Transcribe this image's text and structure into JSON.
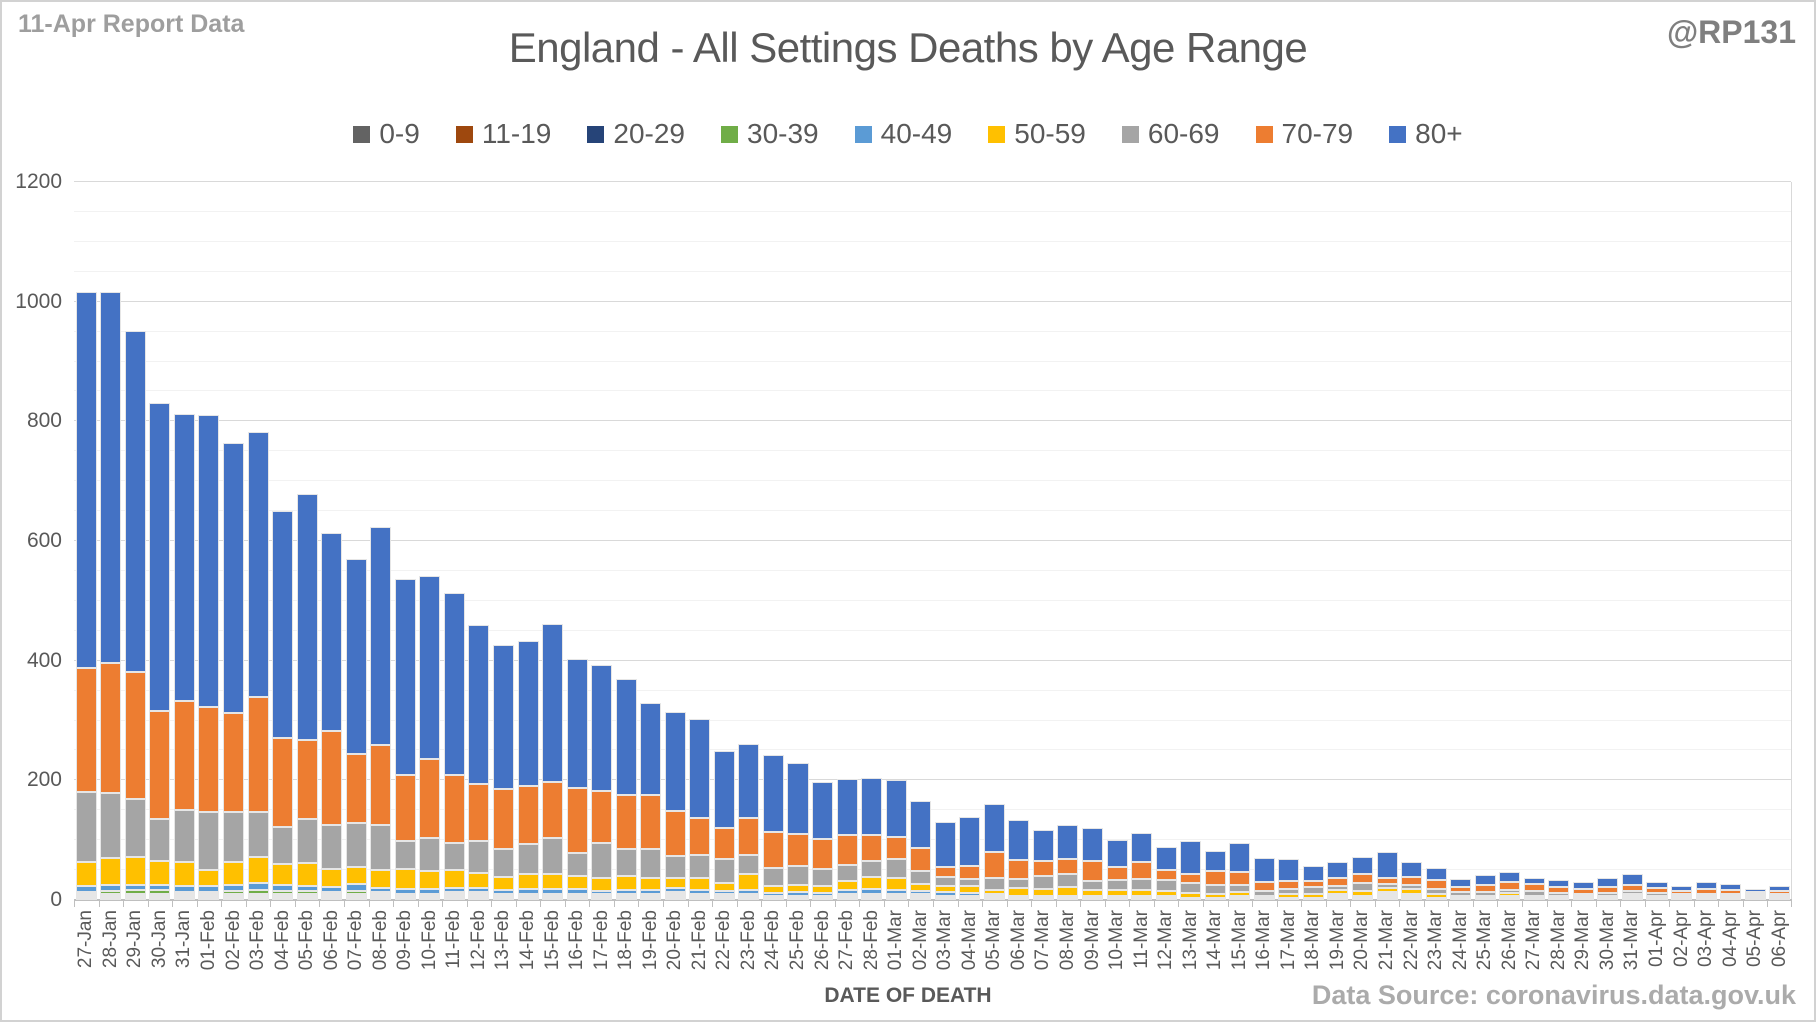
{
  "header": {
    "report_label": "11-Apr Report Data",
    "handle": "@RP131"
  },
  "title": "England - All Settings Deaths by Age Range",
  "footer": {
    "xaxis_title": "DATE OF DEATH",
    "data_source": "Data Source: coronavirus.data.gov.uk"
  },
  "colors": {
    "text_dark": "#595959",
    "text_muted": "#9e9e9e",
    "grid_major": "#d9d9d9",
    "grid_minor": "#f2f2f2",
    "axis_line": "#bfbfbf"
  },
  "chart_data": {
    "type": "bar",
    "stacked": true,
    "title": "England - All Settings Deaths by Age Range",
    "xlabel": "DATE OF DEATH",
    "ylabel": "",
    "ylim": [
      0,
      1200
    ],
    "ytick_interval": 200,
    "minor_grid_interval": 50,
    "grid": true,
    "legend_position": "top",
    "categories": [
      "27-Jan",
      "28-Jan",
      "29-Jan",
      "30-Jan",
      "31-Jan",
      "01-Feb",
      "02-Feb",
      "03-Feb",
      "04-Feb",
      "05-Feb",
      "06-Feb",
      "07-Feb",
      "08-Feb",
      "09-Feb",
      "10-Feb",
      "11-Feb",
      "12-Feb",
      "13-Feb",
      "14-Feb",
      "15-Feb",
      "16-Feb",
      "17-Feb",
      "18-Feb",
      "19-Feb",
      "20-Feb",
      "21-Feb",
      "22-Feb",
      "23-Feb",
      "24-Feb",
      "25-Feb",
      "26-Feb",
      "27-Feb",
      "28-Feb",
      "01-Mar",
      "02-Mar",
      "03-Mar",
      "04-Mar",
      "05-Mar",
      "06-Mar",
      "07-Mar",
      "08-Mar",
      "09-Mar",
      "10-Mar",
      "11-Mar",
      "12-Mar",
      "13-Mar",
      "14-Mar",
      "15-Mar",
      "16-Mar",
      "17-Mar",
      "18-Mar",
      "19-Mar",
      "20-Mar",
      "21-Mar",
      "22-Mar",
      "23-Mar",
      "24-Mar",
      "25-Mar",
      "26-Mar",
      "27-Mar",
      "28-Mar",
      "29-Mar",
      "30-Mar",
      "31-Mar",
      "01-Apr",
      "02-Apr",
      "03-Apr",
      "04-Apr",
      "05-Apr",
      "06-Apr"
    ],
    "series": [
      {
        "name": "0-9",
        "color": "#636363",
        "values": [
          2,
          3,
          3,
          2,
          2,
          2,
          2,
          2,
          3,
          4,
          3,
          3,
          1,
          1,
          1,
          1,
          1,
          1,
          1,
          1,
          1,
          1,
          1,
          1,
          1,
          1,
          1,
          1,
          1,
          1,
          1,
          1,
          1,
          1,
          1,
          1,
          1,
          1,
          1,
          1,
          1,
          1,
          1,
          1,
          1,
          1,
          1,
          1,
          0,
          0,
          0,
          1,
          0,
          1,
          0,
          0,
          0,
          0,
          0,
          0,
          0,
          0,
          0,
          0,
          0,
          0,
          0,
          0,
          0,
          0
        ]
      },
      {
        "name": "11-19",
        "color": "#9e480e",
        "values": [
          1,
          2,
          1,
          1,
          1,
          1,
          1,
          1,
          1,
          1,
          1,
          1,
          1,
          0,
          0,
          1,
          1,
          0,
          0,
          0,
          0,
          0,
          0,
          0,
          1,
          0,
          0,
          0,
          0,
          0,
          0,
          0,
          0,
          0,
          0,
          0,
          0,
          0,
          0,
          0,
          0,
          0,
          0,
          0,
          0,
          0,
          0,
          0,
          0,
          0,
          0,
          0,
          0,
          0,
          0,
          0,
          0,
          0,
          0,
          0,
          0,
          0,
          0,
          0,
          0,
          0,
          0,
          0,
          0,
          0
        ]
      },
      {
        "name": "20-29",
        "color": "#264478",
        "values": [
          2,
          4,
          4,
          3,
          3,
          2,
          3,
          4,
          3,
          3,
          3,
          3,
          2,
          2,
          1,
          1,
          1,
          1,
          1,
          1,
          1,
          1,
          3,
          1,
          1,
          1,
          1,
          1,
          0,
          0,
          0,
          1,
          2,
          2,
          1,
          0,
          0,
          0,
          0,
          0,
          0,
          0,
          0,
          0,
          0,
          0,
          0,
          0,
          0,
          0,
          0,
          1,
          1,
          2,
          1,
          0,
          0,
          0,
          1,
          0,
          0,
          0,
          0,
          1,
          0,
          0,
          0,
          0,
          0,
          0
        ]
      },
      {
        "name": "30-39",
        "color": "#70ad47",
        "values": [
          4,
          5,
          6,
          6,
          4,
          4,
          5,
          6,
          5,
          4,
          4,
          5,
          3,
          3,
          3,
          3,
          2,
          2,
          2,
          2,
          2,
          2,
          2,
          1,
          1,
          1,
          1,
          1,
          1,
          1,
          1,
          1,
          1,
          1,
          1,
          1,
          1,
          1,
          0,
          0,
          0,
          0,
          0,
          0,
          0,
          0,
          0,
          0,
          0,
          0,
          0,
          0,
          0,
          1,
          1,
          0,
          0,
          0,
          0,
          0,
          0,
          0,
          0,
          0,
          0,
          0,
          0,
          0,
          0,
          0
        ]
      },
      {
        "name": "40-49",
        "color": "#5b9bd5",
        "values": [
          10,
          10,
          9,
          9,
          10,
          9,
          10,
          11,
          10,
          8,
          8,
          12,
          6,
          8,
          8,
          7,
          6,
          6,
          8,
          9,
          8,
          5,
          7,
          6,
          6,
          6,
          5,
          6,
          5,
          6,
          5,
          6,
          8,
          7,
          5,
          6,
          5,
          3,
          4,
          2,
          4,
          1,
          2,
          1,
          1,
          0,
          0,
          1,
          1,
          1,
          1,
          1,
          1,
          2,
          3,
          1,
          1,
          1,
          1,
          1,
          1,
          1,
          1,
          1,
          1,
          1,
          1,
          1,
          1,
          1
        ]
      },
      {
        "name": "50-59",
        "color": "#ffc000",
        "values": [
          39,
          45,
          46,
          40,
          39,
          27,
          38,
          45,
          36,
          39,
          30,
          29,
          31,
          34,
          31,
          30,
          25,
          23,
          26,
          24,
          22,
          22,
          23,
          20,
          18,
          20,
          14,
          27,
          12,
          12,
          12,
          15,
          21,
          20,
          12,
          11,
          11,
          7,
          13,
          11,
          15,
          10,
          10,
          10,
          9,
          8,
          7,
          6,
          4,
          6,
          7,
          6,
          9,
          6,
          8,
          6,
          4,
          2,
          5,
          2,
          3,
          3,
          3,
          4,
          3,
          2,
          3,
          2,
          1,
          2
        ]
      },
      {
        "name": "60-69",
        "color": "#a5a5a5",
        "values": [
          117,
          109,
          98,
          71,
          87,
          97,
          84,
          75,
          61,
          74,
          74,
          73,
          75,
          46,
          54,
          45,
          54,
          47,
          49,
          61,
          38,
          59,
          45,
          50,
          36,
          39,
          40,
          33,
          30,
          32,
          29,
          27,
          26,
          32,
          21,
          14,
          13,
          19,
          15,
          22,
          21,
          15,
          16,
          18,
          18,
          17,
          15,
          12,
          7,
          9,
          11,
          8,
          13,
          8,
          7,
          9,
          6,
          6,
          5,
          8,
          5,
          4,
          5,
          5,
          5,
          4,
          4,
          4,
          2,
          3
        ]
      },
      {
        "name": "70-79",
        "color": "#ed7d31",
        "values": [
          208,
          217,
          211,
          180,
          182,
          175,
          165,
          191,
          149,
          131,
          157,
          115,
          134,
          111,
          132,
          114,
          96,
          99,
          97,
          94,
          109,
          86,
          91,
          89,
          75,
          62,
          52,
          61,
          60,
          53,
          50,
          50,
          44,
          36,
          39,
          18,
          22,
          45,
          31,
          25,
          25,
          34,
          23,
          29,
          17,
          16,
          23,
          22,
          15,
          14,
          10,
          12,
          14,
          9,
          13,
          15,
          9,
          13,
          14,
          12,
          10,
          8,
          10,
          9,
          9,
          5,
          8,
          6,
          4,
          5
        ]
      },
      {
        "name": "80+",
        "color": "#4472c4",
        "values": [
          629,
          620,
          570,
          515,
          480,
          488,
          452,
          443,
          380,
          412,
          330,
          326,
          364,
          327,
          307,
          303,
          265,
          242,
          243,
          264,
          216,
          211,
          193,
          154,
          166,
          166,
          128,
          123,
          129,
          119,
          94,
          95,
          95,
          95,
          79,
          75,
          81,
          80,
          67,
          52,
          57,
          55,
          44,
          49,
          38,
          55,
          33,
          48,
          41,
          36,
          25,
          28,
          30,
          44,
          25,
          20,
          13,
          17,
          16,
          10,
          11,
          12,
          15,
          19,
          9,
          7,
          12,
          10,
          4,
          8
        ]
      }
    ]
  }
}
